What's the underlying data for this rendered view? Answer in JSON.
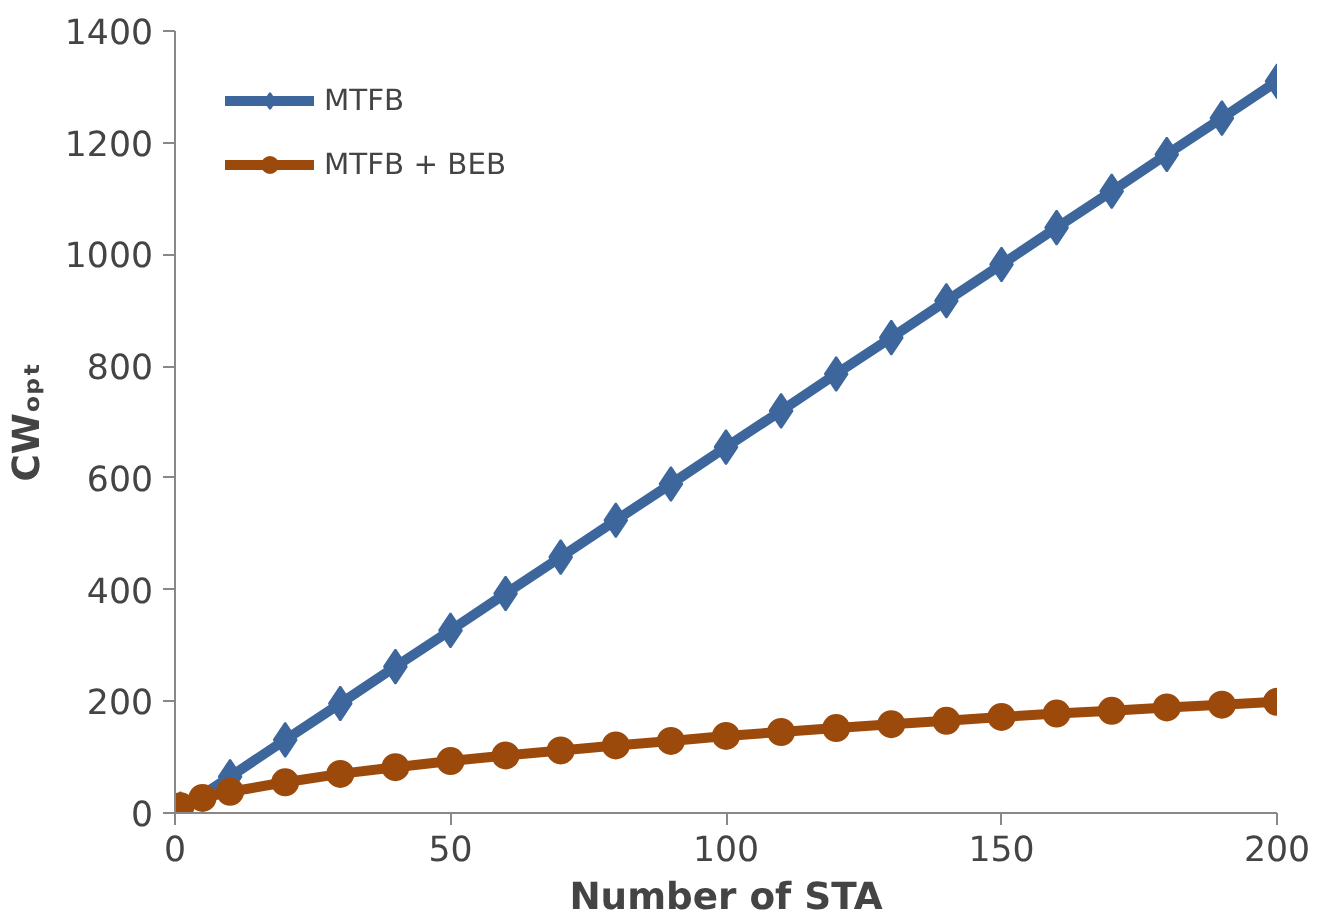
{
  "chart_data": {
    "type": "line",
    "xlabel": "Number of STA",
    "ylabel": "CWₒₚₜ",
    "x": [
      1,
      5,
      10,
      20,
      30,
      40,
      50,
      60,
      70,
      80,
      90,
      100,
      110,
      120,
      130,
      140,
      150,
      160,
      170,
      180,
      190,
      200
    ],
    "series": [
      {
        "name": "MTFB",
        "color": "#3d679c",
        "marker": "diamond",
        "values": [
          7,
          null,
          65,
          131,
          196,
          262,
          327,
          393,
          458,
          524,
          589,
          655,
          720,
          786,
          851,
          917,
          982,
          1048,
          1113,
          1179,
          1244,
          1310
        ]
      },
      {
        "name": "MTFB + BEB",
        "color": "#9c4a0c",
        "marker": "circle",
        "values": [
          12,
          27,
          38,
          55,
          70,
          82,
          93,
          103,
          112,
          121,
          129,
          138,
          145,
          152,
          159,
          165,
          172,
          178,
          183,
          189,
          194,
          199
        ]
      }
    ],
    "xlim": [
      0,
      200
    ],
    "xticks": [
      0,
      50,
      100,
      150,
      200
    ],
    "ylim": [
      0,
      1400
    ],
    "yticks": [
      0,
      200,
      400,
      600,
      800,
      1000,
      1200,
      1400
    ],
    "grid": false,
    "legend": "top left",
    "line_style": "solid"
  }
}
